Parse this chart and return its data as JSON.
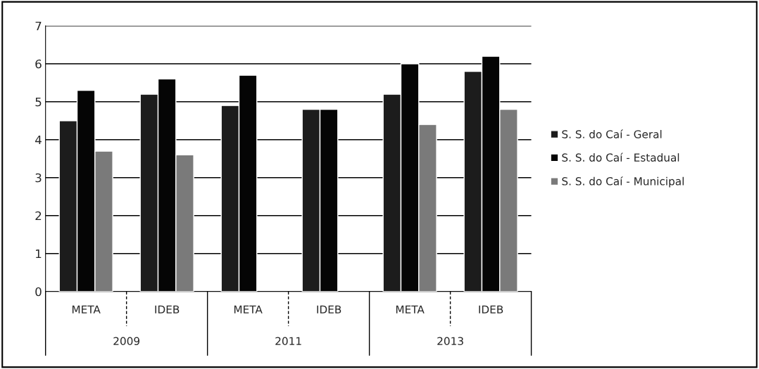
{
  "chart_data": {
    "type": "bar",
    "categories": [
      "META",
      "IDEB",
      "META",
      "IDEB",
      "META",
      "IDEB"
    ],
    "annotations": [
      "2009",
      "2011",
      "2013"
    ],
    "series": [
      {
        "name": "S. S. do Caí - Geral",
        "color": "#1c1c1c",
        "values": [
          4.5,
          5.2,
          4.9,
          4.8,
          5.2,
          5.8
        ]
      },
      {
        "name": "S. S. do Caí - Estadual",
        "color": "#050505",
        "values": [
          5.3,
          5.6,
          5.7,
          4.8,
          6.0,
          6.2
        ]
      },
      {
        "name": "S. S. do Caí - Municipal",
        "color": "#7a7a7a",
        "values": [
          3.7,
          3.6,
          null,
          null,
          4.4,
          4.8
        ]
      }
    ],
    "ylim": [
      0,
      7
    ],
    "yticks": [
      0,
      1,
      2,
      3,
      4,
      5,
      6,
      7
    ],
    "grid": "y",
    "legend": "right"
  }
}
